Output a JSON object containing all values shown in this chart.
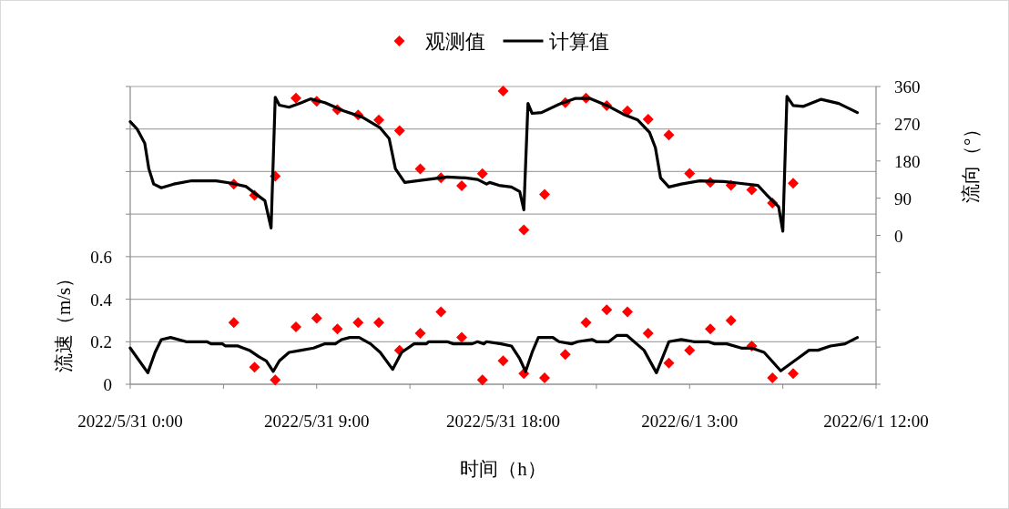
{
  "chart_data": {
    "type": "line",
    "xlabel": "时间（h）",
    "ylabel": "流速（m/s）",
    "y2label": "流向（°）",
    "legend": "top",
    "grid": "y",
    "xlim": [
      "2022-05-31T00:00",
      "2022-06-01T12:00"
    ],
    "xticks": [
      {
        "value": "2022-05-31T00:00",
        "label": "2022/5/31 0:00"
      },
      {
        "value": "2022-05-31T04:30",
        "label": null
      },
      {
        "value": "2022-05-31T09:00",
        "label": "2022/5/31 9:00"
      },
      {
        "value": "2022-05-31T13:30",
        "label": null
      },
      {
        "value": "2022-05-31T18:00",
        "label": "2022/5/31 18:00"
      },
      {
        "value": "2022-05-31T22:30",
        "label": null
      },
      {
        "value": "2022-06-01T03:00",
        "label": "2022/6/1 3:00"
      },
      {
        "value": "2022-06-01T07:30",
        "label": null
      },
      {
        "value": "2022-06-01T12:00",
        "label": "2022/6/1 12:00"
      }
    ],
    "ylim": [
      0,
      1.4
    ],
    "yticks": [
      0,
      0.2,
      0.4,
      0.6,
      {
        "value": 0.8,
        "label": null
      },
      {
        "value": 1.0,
        "label": null
      },
      {
        "value": 1.2,
        "label": null
      },
      {
        "value": 1.4,
        "label": null
      }
    ],
    "y2lim": [
      -360,
      360
    ],
    "y2ticks": [
      {
        "value": -360,
        "label": null
      },
      {
        "value": -270,
        "label": null
      },
      {
        "value": -180,
        "label": null
      },
      {
        "value": -90,
        "label": null
      },
      0,
      90,
      180,
      270,
      360
    ],
    "x": [
      "2022-05-31T05:00",
      "2022-05-31T06:00",
      "2022-05-31T07:00",
      "2022-05-31T08:00",
      "2022-05-31T09:00",
      "2022-05-31T10:00",
      "2022-05-31T11:00",
      "2022-05-31T12:00",
      "2022-05-31T13:00",
      "2022-05-31T14:00",
      "2022-05-31T15:00",
      "2022-05-31T16:00",
      "2022-05-31T17:00",
      "2022-05-31T18:00",
      "2022-05-31T19:00",
      "2022-05-31T20:00",
      "2022-05-31T21:00",
      "2022-05-31T22:00",
      "2022-05-31T23:00",
      "2022-06-01T00:00",
      "2022-06-01T01:00",
      "2022-06-01T02:00",
      "2022-06-01T03:00",
      "2022-06-01T04:00",
      "2022-06-01T05:00",
      "2022-06-01T06:00",
      "2022-06-01T07:00",
      "2022-06-01T08:00"
    ],
    "series": [
      {
        "name": "观测值",
        "type": "scatter",
        "marker": "diamond",
        "axis": "y2",
        "color": "#ff0000",
        "values": [
          124,
          97,
          143,
          332,
          324,
          304,
          291,
          279,
          253,
          161,
          139,
          120,
          149,
          349,
          13,
          99,
          321,
          332,
          314,
          301,
          281,
          243,
          150,
          128,
          121,
          110,
          78,
          126
        ]
      },
      {
        "type": "scatter",
        "marker": "diamond",
        "axis": "y",
        "color": "#ff0000",
        "values": [
          0.29,
          0.08,
          0.02,
          0.27,
          0.31,
          0.26,
          0.29,
          0.29,
          0.16,
          0.24,
          0.34,
          0.22,
          0.02,
          0.11,
          0.05,
          0.03,
          0.14,
          0.29,
          0.35,
          0.34,
          0.24,
          0.1,
          0.16,
          0.26,
          0.3,
          0.18,
          0.03,
          0.05
        ]
      },
      {
        "name": "计算值",
        "axis": "y2",
        "color": "#000000",
        "x": [
          "2022-05-31T00:00",
          "2022-05-31T00:20",
          "2022-05-31T00:42",
          "2022-05-31T00:54",
          "2022-05-31T01:08",
          "2022-05-31T01:30",
          "2022-05-31T02:06",
          "2022-05-31T02:58",
          "2022-05-31T04:09",
          "2022-05-31T04:54",
          "2022-05-31T05:36",
          "2022-05-31T05:54",
          "2022-05-31T06:30",
          "2022-05-31T06:48",
          "2022-05-31T07:00",
          "2022-05-31T07:12",
          "2022-05-31T07:40",
          "2022-05-31T08:16",
          "2022-05-31T08:42",
          "2022-05-31T09:24",
          "2022-05-31T10:18",
          "2022-05-31T11:12",
          "2022-05-31T12:04",
          "2022-05-31T12:30",
          "2022-05-31T12:48",
          "2022-05-31T13:15",
          "2022-05-31T14:00",
          "2022-05-31T15:18",
          "2022-05-31T16:12",
          "2022-05-31T16:46",
          "2022-05-31T17:12",
          "2022-05-31T17:21",
          "2022-05-31T17:48",
          "2022-05-31T18:24",
          "2022-05-31T18:48",
          "2022-05-31T19:00",
          "2022-05-31T19:12",
          "2022-05-31T19:24",
          "2022-05-31T19:51",
          "2022-05-31T20:42",
          "2022-05-31T21:28",
          "2022-05-31T22:12",
          "2022-05-31T23:06",
          "2022-05-31T23:48",
          "2022-06-01T00:30",
          "2022-06-01T01:04",
          "2022-06-01T01:21",
          "2022-06-01T01:36",
          "2022-06-01T02:00",
          "2022-06-01T02:36",
          "2022-06-01T03:30",
          "2022-06-01T04:39",
          "2022-06-01T05:24",
          "2022-06-01T06:18",
          "2022-06-01T06:42",
          "2022-06-01T07:18",
          "2022-06-01T07:30",
          "2022-06-01T07:42",
          "2022-06-01T08:00",
          "2022-06-01T08:30",
          "2022-06-01T09:21",
          "2022-06-01T10:12",
          "2022-06-01T11:06"
        ],
        "values": [
          275,
          257,
          223,
          161,
          124,
          115,
          124,
          132,
          132,
          126,
          118,
          106,
          84,
          18,
          334,
          315,
          310,
          321,
          330,
          321,
          301,
          286,
          260,
          234,
          161,
          128,
          133,
          141,
          139,
          135,
          124,
          128,
          121,
          117,
          106,
          62,
          319,
          295,
          297,
          317,
          331,
          331,
          312,
          293,
          279,
          249,
          212,
          139,
          117,
          124,
          132,
          130,
          126,
          121,
          99,
          69,
          10,
          336,
          314,
          312,
          329,
          319,
          297
        ]
      },
      {
        "axis": "y",
        "color": "#000000",
        "x": [
          "2022-05-31T00:00",
          "2022-05-31T00:51",
          "2022-05-31T01:12",
          "2022-05-31T01:30",
          "2022-05-31T01:57",
          "2022-05-31T02:42",
          "2022-05-31T03:42",
          "2022-05-31T03:54",
          "2022-05-31T04:27",
          "2022-05-31T04:36",
          "2022-05-31T05:12",
          "2022-05-31T05:45",
          "2022-05-31T06:12",
          "2022-05-31T06:34",
          "2022-05-31T06:54",
          "2022-05-31T07:12",
          "2022-05-31T07:40",
          "2022-05-31T08:16",
          "2022-05-31T08:51",
          "2022-05-31T09:24",
          "2022-05-31T09:54",
          "2022-05-31T10:12",
          "2022-05-31T10:36",
          "2022-05-31T11:03",
          "2022-05-31T11:36",
          "2022-05-31T12:04",
          "2022-05-31T12:40",
          "2022-05-31T13:06",
          "2022-05-31T13:42",
          "2022-05-31T14:18",
          "2022-05-31T14:24",
          "2022-05-31T15:18",
          "2022-05-31T15:36",
          "2022-05-31T16:30",
          "2022-05-31T16:46",
          "2022-05-31T17:04",
          "2022-05-31T17:12",
          "2022-05-31T17:54",
          "2022-05-31T18:24",
          "2022-05-31T18:48",
          "2022-05-31T19:05",
          "2022-05-31T19:24",
          "2022-05-31T19:42",
          "2022-05-31T20:24",
          "2022-05-31T20:42",
          "2022-05-31T21:18",
          "2022-05-31T21:36",
          "2022-05-31T22:18",
          "2022-05-31T22:30",
          "2022-05-31T23:06",
          "2022-05-31T23:30",
          "2022-05-31T23:58",
          "2022-06-01T00:48",
          "2022-06-01T01:24",
          "2022-06-01T02:00",
          "2022-06-01T02:36",
          "2022-06-01T03:12",
          "2022-06-01T03:54",
          "2022-06-01T04:12",
          "2022-06-01T04:48",
          "2022-06-01T05:30",
          "2022-06-01T06:00",
          "2022-06-01T06:36",
          "2022-06-01T07:24",
          "2022-06-01T08:12",
          "2022-06-01T08:46",
          "2022-06-01T09:12",
          "2022-06-01T09:48",
          "2022-06-01T10:30",
          "2022-06-01T11:06"
        ],
        "values": [
          0.17,
          0.054,
          0.15,
          0.21,
          0.22,
          0.2,
          0.2,
          0.19,
          0.19,
          0.18,
          0.18,
          0.16,
          0.13,
          0.11,
          0.06,
          0.11,
          0.15,
          0.16,
          0.17,
          0.19,
          0.19,
          0.21,
          0.22,
          0.22,
          0.19,
          0.15,
          0.07,
          0.15,
          0.19,
          0.19,
          0.2,
          0.2,
          0.19,
          0.19,
          0.2,
          0.19,
          0.2,
          0.19,
          0.18,
          0.12,
          0.06,
          0.15,
          0.22,
          0.22,
          0.2,
          0.19,
          0.2,
          0.21,
          0.2,
          0.2,
          0.23,
          0.23,
          0.16,
          0.054,
          0.2,
          0.21,
          0.2,
          0.2,
          0.19,
          0.19,
          0.17,
          0.17,
          0.15,
          0.063,
          0.12,
          0.16,
          0.16,
          0.18,
          0.19,
          0.22
        ]
      }
    ]
  }
}
